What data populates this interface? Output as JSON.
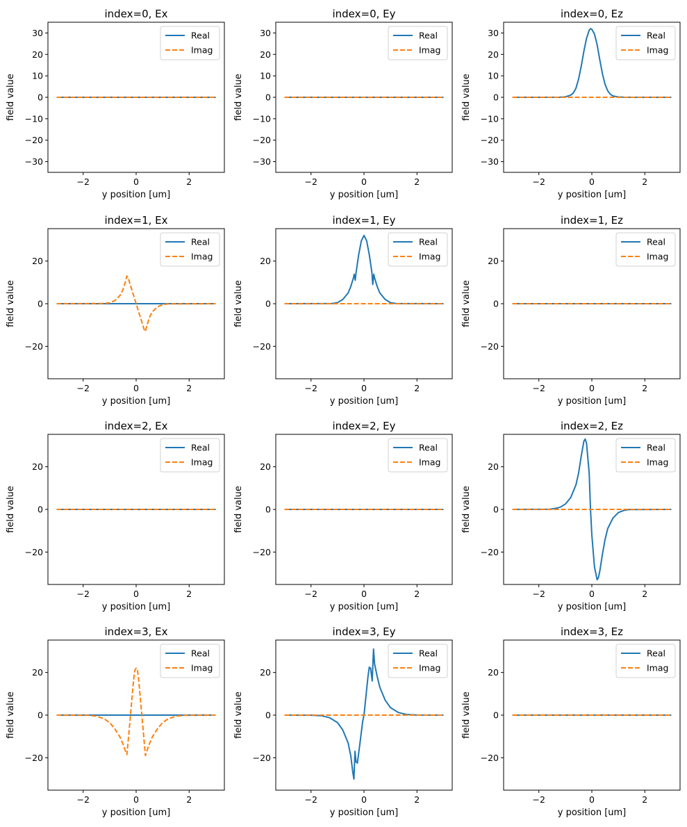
{
  "chart_data": {
    "type": "line",
    "layout": {
      "rows": 4,
      "cols": 3
    },
    "series_styles": {
      "Real": {
        "color": "#1f77b4",
        "dash": "solid"
      },
      "Imag": {
        "color": "#ff7f0e",
        "dash": "dashed"
      }
    },
    "legend": {
      "entries": [
        "Real",
        "Imag"
      ],
      "placement": "top-right"
    },
    "panels": [
      {
        "title": "index=0, Ex",
        "xlabel": "y position [um]",
        "ylabel": "field value",
        "xlim": [
          -3.33,
          3.33
        ],
        "ylim": [
          -35,
          35
        ],
        "xticks": [
          -2,
          0,
          2
        ],
        "xticklabels": [
          "−2",
          "0",
          "2"
        ],
        "yticks": [
          -30,
          -20,
          -10,
          0,
          10,
          20,
          30
        ],
        "yticklabels": [
          "−30",
          "−20",
          "−10",
          "0",
          "10",
          "20",
          "30"
        ],
        "series": [
          {
            "name": "Real",
            "x": [
              -3,
              3
            ],
            "y": [
              0,
              0
            ]
          },
          {
            "name": "Imag",
            "x": [
              -3,
              3
            ],
            "y": [
              0,
              0
            ]
          }
        ]
      },
      {
        "title": "index=0, Ey",
        "xlabel": "y position [um]",
        "ylabel": "field value",
        "xlim": [
          -3.33,
          3.33
        ],
        "ylim": [
          -35,
          35
        ],
        "xticks": [
          -2,
          0,
          2
        ],
        "xticklabels": [
          "−2",
          "0",
          "2"
        ],
        "yticks": [
          -30,
          -20,
          -10,
          0,
          10,
          20,
          30
        ],
        "yticklabels": [
          "−30",
          "−20",
          "−10",
          "0",
          "10",
          "20",
          "30"
        ],
        "series": [
          {
            "name": "Real",
            "x": [
              -3,
              3
            ],
            "y": [
              0,
              0
            ]
          },
          {
            "name": "Imag",
            "x": [
              -3,
              3
            ],
            "y": [
              0,
              0
            ]
          }
        ]
      },
      {
        "title": "index=0, Ez",
        "xlabel": "y position [um]",
        "ylabel": "field value",
        "xlim": [
          -3.33,
          3.33
        ],
        "ylim": [
          -35,
          35
        ],
        "xticks": [
          -2,
          0,
          2
        ],
        "xticklabels": [
          "−2",
          "0",
          "2"
        ],
        "yticks": [
          -30,
          -20,
          -10,
          0,
          10,
          20,
          30
        ],
        "yticklabels": [
          "−30",
          "−20",
          "−10",
          "0",
          "10",
          "20",
          "30"
        ],
        "series": [
          {
            "name": "Real",
            "x": [
              -3,
              -1.2,
              -1.0,
              -0.8,
              -0.7,
              -0.6,
              -0.5,
              -0.4,
              -0.3,
              -0.2,
              -0.1,
              -0.05,
              0,
              0.1,
              0.2,
              0.3,
              0.4,
              0.5,
              0.6,
              0.7,
              0.8,
              1.0,
              1.2,
              3
            ],
            "y": [
              0,
              0.05,
              0.2,
              1.0,
              2.0,
              4.2,
              8.5,
              14.5,
              21.5,
              27.5,
              31.3,
              32,
              31.7,
              29.5,
              24.5,
              17.5,
              11.0,
              6.0,
              3.0,
              1.4,
              0.6,
              0.15,
              0.05,
              0
            ]
          },
          {
            "name": "Imag",
            "x": [
              -3,
              3
            ],
            "y": [
              0,
              0
            ]
          }
        ]
      },
      {
        "title": "index=1, Ex",
        "xlabel": "y position [um]",
        "ylabel": "field value",
        "xlim": [
          -3.33,
          3.33
        ],
        "ylim": [
          -35.2,
          35.2
        ],
        "xticks": [
          -2,
          0,
          2
        ],
        "xticklabels": [
          "−2",
          "0",
          "2"
        ],
        "yticks": [
          -20,
          0,
          20
        ],
        "yticklabels": [
          "−20",
          "0",
          "20"
        ],
        "series": [
          {
            "name": "Real",
            "x": [
              -3,
              3
            ],
            "y": [
              0,
              0
            ]
          },
          {
            "name": "Imag",
            "x": [
              -3,
              -1.2,
              -1.0,
              -0.8,
              -0.6,
              -0.5,
              -0.4,
              -0.35,
              -0.3,
              -0.2,
              -0.1,
              0,
              0.1,
              0.2,
              0.3,
              0.35,
              0.4,
              0.5,
              0.6,
              0.8,
              1.0,
              1.2,
              3
            ],
            "y": [
              0,
              0.1,
              0.4,
              1.5,
              4.0,
              6.5,
              10.5,
              13,
              12,
              8,
              4,
              0,
              -4,
              -8,
              -12,
              -13,
              -10.5,
              -6.5,
              -4.0,
              -1.5,
              -0.4,
              -0.1,
              0
            ]
          }
        ]
      },
      {
        "title": "index=1, Ey",
        "xlabel": "y position [um]",
        "ylabel": "field value",
        "xlim": [
          -3.33,
          3.33
        ],
        "ylim": [
          -35.2,
          35.2
        ],
        "xticks": [
          -2,
          0,
          2
        ],
        "xticklabels": [
          "−2",
          "0",
          "2"
        ],
        "yticks": [
          -20,
          0,
          20
        ],
        "yticklabels": [
          "−20",
          "0",
          "20"
        ],
        "series": [
          {
            "name": "Real",
            "x": [
              -3,
              -1.2,
              -1.0,
              -0.8,
              -0.6,
              -0.5,
              -0.4,
              -0.37,
              -0.33,
              -0.3,
              -0.2,
              -0.1,
              0,
              0.1,
              0.2,
              0.3,
              0.33,
              0.37,
              0.4,
              0.5,
              0.6,
              0.8,
              1.0,
              1.2,
              3
            ],
            "y": [
              0,
              0.1,
              0.5,
              2.0,
              5.0,
              8.0,
              12.0,
              13.8,
              11.0,
              14.5,
              23,
              29.5,
              32,
              29.5,
              23,
              14.5,
              9.0,
              13.8,
              12.0,
              8.0,
              5.0,
              2.0,
              0.5,
              0.1,
              0
            ]
          },
          {
            "name": "Imag",
            "x": [
              -3,
              3
            ],
            "y": [
              0,
              0
            ]
          }
        ]
      },
      {
        "title": "index=1, Ez",
        "xlabel": "y position [um]",
        "ylabel": "field value",
        "xlim": [
          -3.33,
          3.33
        ],
        "ylim": [
          -35.2,
          35.2
        ],
        "xticks": [
          -2,
          0,
          2
        ],
        "xticklabels": [
          "−2",
          "0",
          "2"
        ],
        "yticks": [
          -20,
          0,
          20
        ],
        "yticklabels": [
          "−20",
          "0",
          "20"
        ],
        "series": [
          {
            "name": "Real",
            "x": [
              -3,
              3
            ],
            "y": [
              0,
              0
            ]
          },
          {
            "name": "Imag",
            "x": [
              -3,
              3
            ],
            "y": [
              0,
              0
            ]
          }
        ]
      },
      {
        "title": "index=2, Ex",
        "xlabel": "y position [um]",
        "ylabel": "field value",
        "xlim": [
          -3.33,
          3.33
        ],
        "ylim": [
          -35.2,
          35.2
        ],
        "xticks": [
          -2,
          0,
          2
        ],
        "xticklabels": [
          "−2",
          "0",
          "2"
        ],
        "yticks": [
          -20,
          0,
          20
        ],
        "yticklabels": [
          "−20",
          "0",
          "20"
        ],
        "series": [
          {
            "name": "Real",
            "x": [
              -3,
              3
            ],
            "y": [
              0,
              0
            ]
          },
          {
            "name": "Imag",
            "x": [
              -3,
              3
            ],
            "y": [
              0,
              0
            ]
          }
        ]
      },
      {
        "title": "index=2, Ey",
        "xlabel": "y position [um]",
        "ylabel": "field value",
        "xlim": [
          -3.33,
          3.33
        ],
        "ylim": [
          -35.2,
          35.2
        ],
        "xticks": [
          -2,
          0,
          2
        ],
        "xticklabels": [
          "−2",
          "0",
          "2"
        ],
        "yticks": [
          -20,
          0,
          20
        ],
        "yticklabels": [
          "−20",
          "0",
          "20"
        ],
        "series": [
          {
            "name": "Real",
            "x": [
              -3,
              3
            ],
            "y": [
              0,
              0
            ]
          },
          {
            "name": "Imag",
            "x": [
              -3,
              3
            ],
            "y": [
              0,
              0
            ]
          }
        ]
      },
      {
        "title": "index=2, Ez",
        "xlabel": "y position [um]",
        "ylabel": "field value",
        "xlim": [
          -3.33,
          3.33
        ],
        "ylim": [
          -35.2,
          35.2
        ],
        "xticks": [
          -2,
          0,
          2
        ],
        "xticklabels": [
          "−2",
          "0",
          "2"
        ],
        "yticks": [
          -20,
          0,
          20
        ],
        "yticklabels": [
          "−20",
          "0",
          "20"
        ],
        "series": [
          {
            "name": "Real",
            "x": [
              -3,
              -1.6,
              -1.4,
              -1.2,
              -1.0,
              -0.8,
              -0.6,
              -0.5,
              -0.4,
              -0.3,
              -0.25,
              -0.2,
              -0.1,
              -0.05,
              0,
              0.1,
              0.2,
              0.25,
              0.3,
              0.4,
              0.5,
              0.6,
              0.8,
              1.0,
              1.2,
              1.4,
              3
            ],
            "y": [
              0,
              0.1,
              0.4,
              1.0,
              2.5,
              5.5,
              11.5,
              17,
              25,
              32,
              33,
              31,
              17,
              0,
              -12,
              -27,
              -33,
              -32,
              -29,
              -21,
              -14,
              -9,
              -4,
              -1.5,
              -0.5,
              -0.1,
              0
            ]
          },
          {
            "name": "Imag",
            "x": [
              -3,
              3
            ],
            "y": [
              0,
              0
            ]
          }
        ]
      },
      {
        "title": "index=3, Ex",
        "xlabel": "y position [um]",
        "ylabel": "field value",
        "xlim": [
          -3.33,
          3.33
        ],
        "ylim": [
          -35.2,
          35.2
        ],
        "xticks": [
          -2,
          0,
          2
        ],
        "xticklabels": [
          "−2",
          "0",
          "2"
        ],
        "yticks": [
          -20,
          0,
          20
        ],
        "yticklabels": [
          "−20",
          "0",
          "20"
        ],
        "series": [
          {
            "name": "Real",
            "x": [
              -3,
              3
            ],
            "y": [
              0,
              0
            ]
          },
          {
            "name": "Imag",
            "x": [
              -3,
              -1.8,
              -1.5,
              -1.2,
              -1.0,
              -0.8,
              -0.6,
              -0.5,
              -0.4,
              -0.35,
              -0.3,
              -0.2,
              -0.1,
              -0.05,
              0,
              0.05,
              0.1,
              0.2,
              0.3,
              0.35,
              0.4,
              0.5,
              0.6,
              0.8,
              1.0,
              1.2,
              1.5,
              1.8,
              3
            ],
            "y": [
              0,
              -0.1,
              -0.5,
              -1.8,
              -3.5,
              -6.5,
              -10.5,
              -13.5,
              -17,
              -18.5,
              -12,
              2,
              16,
              21,
              22,
              21,
              16,
              2,
              -12,
              -19,
              -17,
              -13.5,
              -10.5,
              -6.5,
              -3.5,
              -1.8,
              -0.5,
              -0.1,
              0
            ]
          }
        ]
      },
      {
        "title": "index=3, Ey",
        "xlabel": "y position [um]",
        "ylabel": "field value",
        "xlim": [
          -3.33,
          3.33
        ],
        "ylim": [
          -35.2,
          35.2
        ],
        "xticks": [
          -2,
          0,
          2
        ],
        "xticklabels": [
          "−2",
          "0",
          "2"
        ],
        "yticks": [
          -20,
          0,
          20
        ],
        "yticklabels": [
          "−20",
          "0",
          "20"
        ],
        "series": [
          {
            "name": "Real",
            "x": [
              -3,
              -2.0,
              -1.6,
              -1.3,
              -1.0,
              -0.8,
              -0.6,
              -0.5,
              -0.42,
              -0.38,
              -0.34,
              -0.3,
              -0.25,
              -0.15,
              -0.05,
              0,
              0.05,
              0.15,
              0.2,
              0.25,
              0.3,
              0.31,
              0.36,
              0.4,
              0.5,
              0.6,
              0.8,
              1.0,
              1.3,
              1.6,
              2.0,
              3
            ],
            "y": [
              0,
              -0.05,
              -0.3,
              -1.2,
              -3.5,
              -7,
              -13,
              -19,
              -27,
              -30,
              -17,
              -22,
              -22.5,
              -13,
              -3,
              0,
              6,
              18,
              22.5,
              22,
              17,
              16,
              31,
              24,
              18,
              13,
              7,
              3.5,
              1.2,
              0.3,
              0.05,
              0
            ]
          },
          {
            "name": "Imag",
            "x": [
              -3,
              3
            ],
            "y": [
              0,
              0
            ]
          }
        ]
      },
      {
        "title": "index=3, Ez",
        "xlabel": "y position [um]",
        "ylabel": "field value",
        "xlim": [
          -3.33,
          3.33
        ],
        "ylim": [
          -35.2,
          35.2
        ],
        "xticks": [
          -2,
          0,
          2
        ],
        "xticklabels": [
          "−2",
          "0",
          "2"
        ],
        "yticks": [
          -20,
          0,
          20
        ],
        "yticklabels": [
          "−20",
          "0",
          "20"
        ],
        "series": [
          {
            "name": "Real",
            "x": [
              -3,
              3
            ],
            "y": [
              0,
              0
            ]
          },
          {
            "name": "Imag",
            "x": [
              -3,
              3
            ],
            "y": [
              0,
              0
            ]
          }
        ]
      }
    ]
  }
}
